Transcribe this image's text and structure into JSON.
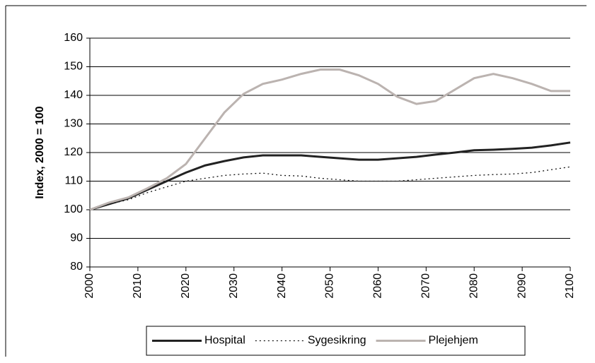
{
  "chart_data": {
    "type": "line",
    "y_label": "Index, 2000 = 100",
    "x": [
      2000,
      2004,
      2008,
      2012,
      2016,
      2020,
      2024,
      2028,
      2032,
      2036,
      2040,
      2044,
      2048,
      2052,
      2056,
      2060,
      2064,
      2068,
      2072,
      2076,
      2080,
      2084,
      2088,
      2092,
      2096,
      2100
    ],
    "series": [
      {
        "name": "Hospital",
        "color": "#222222",
        "style": "solid",
        "values": [
          100,
          102,
          104,
          107,
          110,
          113,
          115.5,
          117,
          118.3,
          119,
          119,
          119,
          118.5,
          118,
          117.5,
          117.5,
          118,
          118.5,
          119.3,
          120,
          120.8,
          121,
          121.3,
          121.7,
          122.5,
          123.5
        ]
      },
      {
        "name": "Sygesikring",
        "color": "#111111",
        "style": "dotted",
        "values": [
          100,
          102,
          103.5,
          106,
          108,
          110,
          111,
          112,
          112.5,
          112.8,
          112,
          111.8,
          111,
          110.5,
          110,
          110,
          110,
          110.5,
          111,
          111.5,
          112,
          112.3,
          112.5,
          113,
          114,
          115
        ]
      },
      {
        "name": "Plejehjem",
        "color": "#bbb3b0",
        "style": "solid",
        "values": [
          100,
          102.5,
          104.3,
          107.5,
          111,
          116,
          125,
          134,
          140.5,
          144,
          145.5,
          147.5,
          149,
          149,
          147,
          144,
          139.5,
          137,
          138,
          142,
          146,
          147.5,
          146,
          144,
          141.5,
          141.5
        ]
      }
    ],
    "xlim": [
      2000,
      2100
    ],
    "xticks": [
      2000,
      2010,
      2020,
      2030,
      2040,
      2050,
      2060,
      2070,
      2080,
      2090,
      2100
    ],
    "ylim": [
      80,
      160
    ],
    "yticks": [
      80,
      90,
      100,
      110,
      120,
      130,
      140,
      150,
      160
    ],
    "grid": true,
    "legend": "bottom"
  }
}
